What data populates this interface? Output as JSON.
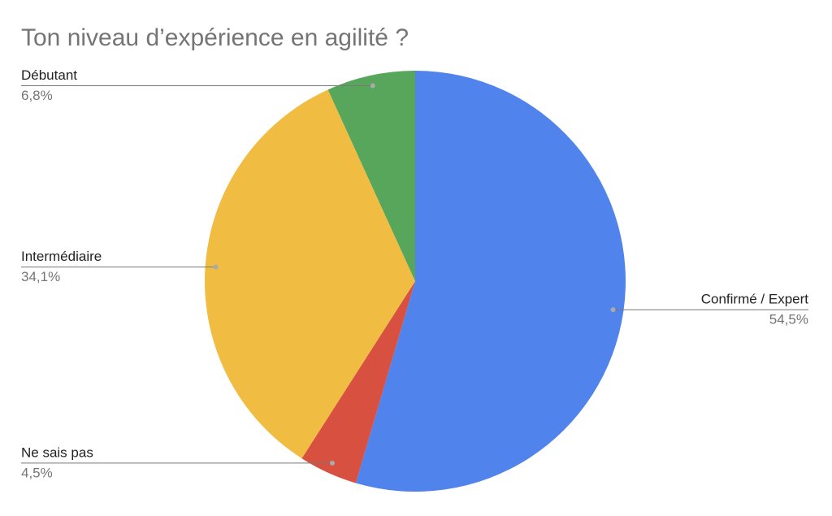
{
  "chart_data": {
    "type": "pie",
    "title": "Ton niveau d’expérience en agilité ?",
    "categories": [
      "Confirmé / Expert",
      "Ne sais pas",
      "Intermédiaire",
      "Débutant"
    ],
    "values": [
      54.5,
      4.5,
      34.1,
      6.8
    ],
    "value_labels": [
      "54,5%",
      "4,5%",
      "34,1%",
      "6,8%"
    ],
    "colors": [
      "#5083ec",
      "#d85140",
      "#f0bd42",
      "#58a65c"
    ]
  }
}
